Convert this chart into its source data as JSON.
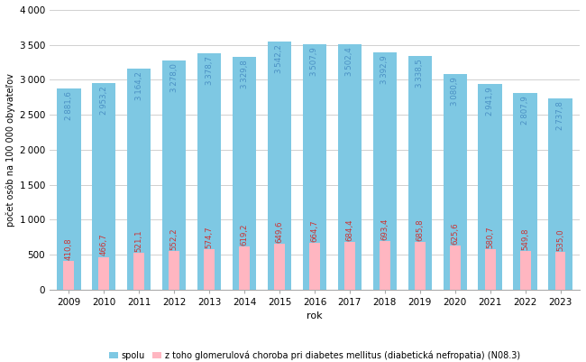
{
  "years": [
    2009,
    2010,
    2011,
    2012,
    2013,
    2014,
    2015,
    2016,
    2017,
    2018,
    2019,
    2020,
    2021,
    2022,
    2023
  ],
  "spolu": [
    2881.6,
    2953.2,
    3164.2,
    3278.0,
    3378.7,
    3329.8,
    3542.2,
    3507.9,
    3502.4,
    3392.9,
    3338.5,
    3080.9,
    2941.9,
    2807.9,
    2737.8
  ],
  "diabeticka": [
    410.8,
    466.7,
    521.1,
    552.2,
    574.7,
    619.2,
    649.6,
    664.7,
    684.4,
    693.4,
    685.8,
    625.6,
    580.7,
    549.8,
    535.0
  ],
  "bar_color_spolu": "#7ec8e3",
  "bar_color_diabeticka": "#ffb6c1",
  "label_color_spolu": "#4a90c4",
  "label_color_diabeticka": "#cc3333",
  "ylabel": "počet osôb na 100 000 obyvateľov",
  "xlabel": "rok",
  "ylim": [
    0,
    4000
  ],
  "yticks": [
    0,
    500,
    1000,
    1500,
    2000,
    2500,
    3000,
    3500,
    4000
  ],
  "legend_spolu": "spolu",
  "legend_diabeticka": "z toho glomerulová choroba pri diabetes mellitus (diabetická nefropatia) (N08.3)",
  "background_color": "#ffffff",
  "grid_color": "#d0d0d0",
  "bar_width": 0.68,
  "pink_bar_width": 0.3
}
